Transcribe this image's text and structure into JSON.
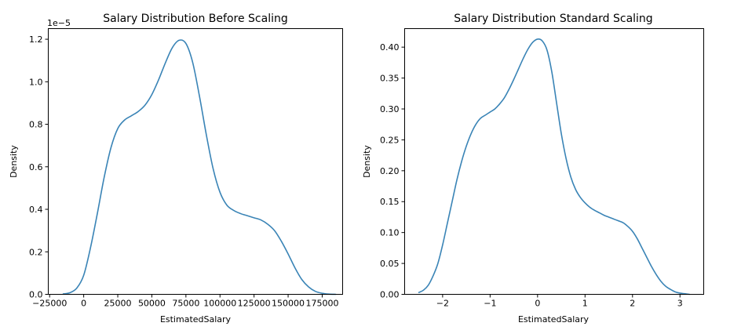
{
  "colors": {
    "line": "#3a84b6",
    "axes": "#000000",
    "background": "#ffffff"
  },
  "chart_data": [
    {
      "type": "line",
      "title": "Salary Distribution Before Scaling",
      "xlabel": "EstimatedSalary",
      "ylabel": "Density",
      "offset_text": "1e−5",
      "xlim": [
        -26000,
        190000
      ],
      "ylim": [
        0,
        1.25
      ],
      "xticks": [
        -25000,
        0,
        25000,
        50000,
        75000,
        100000,
        125000,
        150000,
        175000
      ],
      "xtick_labels": [
        "−25000",
        "0",
        "25000",
        "50000",
        "75000",
        "100000",
        "125000",
        "150000",
        "175000"
      ],
      "yticks": [
        0.0,
        0.2,
        0.4,
        0.6,
        0.8,
        1.0,
        1.2
      ],
      "ytick_labels": [
        "0.0",
        "0.2",
        "0.4",
        "0.6",
        "0.8",
        "1.0",
        "1.2"
      ],
      "grid": false,
      "series": [
        {
          "x": [
            -15000,
            -10000,
            -5000,
            0,
            5000,
            10000,
            15000,
            20000,
            25000,
            30000,
            35000,
            40000,
            45000,
            50000,
            55000,
            60000,
            65000,
            70000,
            75000,
            80000,
            85000,
            90000,
            95000,
            100000,
            105000,
            110000,
            115000,
            120000,
            125000,
            130000,
            135000,
            140000,
            145000,
            150000,
            155000,
            160000,
            165000,
            170000,
            175000,
            180000,
            185000
          ],
          "y": [
            0.002,
            0.008,
            0.03,
            0.09,
            0.22,
            0.38,
            0.55,
            0.69,
            0.78,
            0.82,
            0.84,
            0.86,
            0.89,
            0.94,
            1.01,
            1.09,
            1.16,
            1.195,
            1.18,
            1.09,
            0.93,
            0.75,
            0.59,
            0.48,
            0.42,
            0.395,
            0.38,
            0.37,
            0.36,
            0.35,
            0.33,
            0.3,
            0.25,
            0.19,
            0.125,
            0.07,
            0.035,
            0.014,
            0.005,
            0.001,
            0.0
          ]
        }
      ]
    },
    {
      "type": "line",
      "title": "Salary Distribution Standard Scaling",
      "xlabel": "EstimatedSalary",
      "ylabel": "Density",
      "xlim": [
        -2.8,
        3.5
      ],
      "ylim": [
        0,
        0.43
      ],
      "xticks": [
        -2,
        -1,
        0,
        1,
        2,
        3
      ],
      "xtick_labels": [
        "−2",
        "−1",
        "0",
        "1",
        "2",
        "3"
      ],
      "yticks": [
        0.0,
        0.05,
        0.1,
        0.15,
        0.2,
        0.25,
        0.3,
        0.35,
        0.4
      ],
      "ytick_labels": [
        "0.00",
        "0.05",
        "0.10",
        "0.15",
        "0.20",
        "0.25",
        "0.30",
        "0.35",
        "0.40"
      ],
      "grid": false,
      "series": [
        {
          "x": [
            -2.5,
            -2.4,
            -2.3,
            -2.2,
            -2.1,
            -2.0,
            -1.9,
            -1.8,
            -1.7,
            -1.6,
            -1.5,
            -1.4,
            -1.3,
            -1.2,
            -1.1,
            -1.0,
            -0.9,
            -0.8,
            -0.7,
            -0.6,
            -0.5,
            -0.4,
            -0.3,
            -0.2,
            -0.1,
            0.0,
            0.1,
            0.2,
            0.3,
            0.4,
            0.5,
            0.6,
            0.7,
            0.8,
            0.9,
            1.0,
            1.1,
            1.2,
            1.3,
            1.4,
            1.5,
            1.6,
            1.7,
            1.8,
            1.9,
            2.0,
            2.1,
            2.2,
            2.3,
            2.4,
            2.5,
            2.6,
            2.7,
            2.8,
            2.9,
            3.0,
            3.1,
            3.2
          ],
          "y": [
            0.003,
            0.007,
            0.015,
            0.03,
            0.05,
            0.08,
            0.115,
            0.15,
            0.185,
            0.215,
            0.24,
            0.26,
            0.275,
            0.285,
            0.29,
            0.295,
            0.3,
            0.308,
            0.318,
            0.332,
            0.348,
            0.365,
            0.382,
            0.397,
            0.408,
            0.413,
            0.41,
            0.395,
            0.36,
            0.31,
            0.26,
            0.22,
            0.19,
            0.17,
            0.157,
            0.148,
            0.141,
            0.136,
            0.132,
            0.128,
            0.125,
            0.122,
            0.119,
            0.116,
            0.11,
            0.102,
            0.09,
            0.075,
            0.06,
            0.045,
            0.032,
            0.021,
            0.013,
            0.008,
            0.004,
            0.002,
            0.001,
            0.0
          ]
        }
      ]
    }
  ]
}
